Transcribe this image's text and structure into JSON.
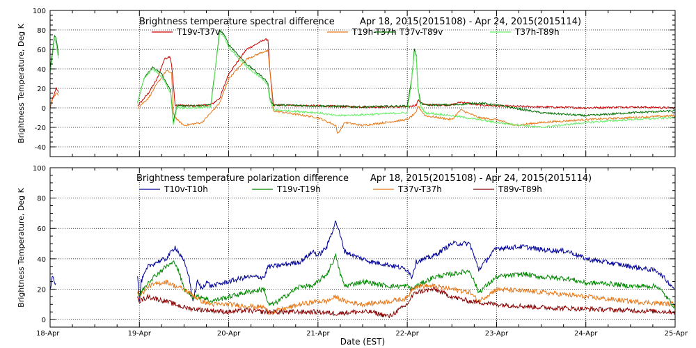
{
  "chart_data": [
    {
      "type": "line",
      "title": "Brightness temperature spectral difference",
      "date_range": "Apr 18, 2015(2015108) - Apr 24, 2015(2015114)",
      "ylabel": "Brightness Temperature, Deg K",
      "xlabel": "",
      "xlim": [
        0,
        7
      ],
      "ylim": [
        -50,
        100
      ],
      "y_ticks": [
        -40,
        -20,
        0,
        20,
        40,
        60,
        80,
        100
      ],
      "x_ticks": [
        0,
        1,
        2,
        3,
        4,
        5,
        6,
        7
      ],
      "grid": true,
      "series": [
        {
          "name": "T19v-T37v",
          "color": "#cc0000",
          "x": [
            0,
            0.03,
            0.07,
            0.1,
            0.98,
            1.1,
            1.2,
            1.28,
            1.34,
            1.36,
            1.4,
            1.6,
            1.8,
            1.9,
            2.0,
            2.2,
            2.4,
            2.44,
            2.46,
            2.5,
            3.0,
            3.5,
            4.0,
            4.1,
            4.12,
            4.2,
            4.5,
            4.6,
            4.8,
            5.0,
            5.5,
            6.0,
            6.5,
            7.0
          ],
          "y": [
            0,
            10,
            20,
            15,
            2,
            15,
            30,
            50,
            53,
            45,
            3,
            2,
            3,
            10,
            35,
            60,
            70,
            70,
            40,
            3,
            2,
            1,
            1,
            3,
            8,
            3,
            3,
            6,
            3,
            2,
            1,
            0,
            1,
            0
          ]
        },
        {
          "name": "T19h-T37h",
          "color": "#e87818",
          "x": [
            0,
            0.03,
            0.07,
            0.1,
            0.98,
            1.1,
            1.2,
            1.3,
            1.36,
            1.38,
            1.42,
            1.5,
            1.7,
            1.8,
            1.9,
            2.0,
            2.2,
            2.4,
            2.44,
            2.46,
            2.5,
            3.0,
            3.2,
            3.22,
            3.3,
            3.5,
            4.0,
            4.1,
            4.12,
            4.2,
            4.5,
            4.6,
            4.8,
            5.0,
            5.2,
            5.5,
            6.0,
            6.5,
            7.0
          ],
          "y": [
            0,
            10,
            15,
            12,
            0,
            10,
            25,
            38,
            36,
            -5,
            -12,
            -18,
            -15,
            -5,
            5,
            30,
            50,
            58,
            58,
            40,
            -3,
            -10,
            -18,
            -27,
            -15,
            -18,
            -12,
            -5,
            2,
            -8,
            -12,
            -2,
            -10,
            -12,
            -18,
            -15,
            -12,
            -10,
            -8
          ]
        },
        {
          "name": "T37v-T89v",
          "color": "#007000",
          "x": [
            0,
            0.03,
            0.05,
            0.07,
            0.1,
            0.98,
            1.05,
            1.15,
            1.25,
            1.35,
            1.38,
            1.42,
            1.6,
            1.8,
            1.85,
            1.9,
            1.95,
            2.0,
            2.2,
            2.4,
            2.44,
            2.46,
            2.5,
            3.0,
            3.5,
            4.0,
            4.05,
            4.08,
            4.1,
            4.12,
            4.15,
            4.2,
            4.5,
            4.8,
            5.0,
            5.5,
            6.0,
            6.5,
            7.0
          ],
          "y": [
            40,
            60,
            75,
            70,
            50,
            5,
            30,
            42,
            35,
            18,
            -15,
            2,
            2,
            3,
            40,
            80,
            75,
            65,
            45,
            30,
            25,
            10,
            3,
            2,
            1,
            2,
            30,
            60,
            55,
            20,
            5,
            3,
            3,
            5,
            3,
            -5,
            -8,
            -5,
            -3
          ]
        },
        {
          "name": "T37h-T89h",
          "color": "#66ee66",
          "x": [
            0,
            0.03,
            0.05,
            0.07,
            0.1,
            0.98,
            1.05,
            1.15,
            1.25,
            1.35,
            1.38,
            1.42,
            1.6,
            1.8,
            1.85,
            1.9,
            1.95,
            2.0,
            2.2,
            2.4,
            2.44,
            2.46,
            2.5,
            3.0,
            3.2,
            3.5,
            4.0,
            4.05,
            4.08,
            4.1,
            4.12,
            4.15,
            4.2,
            4.5,
            4.8,
            5.0,
            5.5,
            6.0,
            6.5,
            7.0
          ],
          "y": [
            35,
            55,
            72,
            65,
            45,
            5,
            30,
            40,
            32,
            15,
            -18,
            0,
            0,
            1,
            38,
            78,
            72,
            62,
            42,
            28,
            22,
            8,
            -2,
            -5,
            -8,
            -7,
            -5,
            28,
            58,
            52,
            18,
            2,
            -5,
            -8,
            -12,
            -15,
            -20,
            -15,
            -12,
            -10
          ]
        }
      ]
    },
    {
      "type": "line",
      "title": "Brightness temperature polarization difference",
      "date_range": "Apr 18, 2015(2015108) - Apr 24, 2015(2015114)",
      "ylabel": "Brightness Temperature, Deg K",
      "xlabel": "Date (EST)",
      "xlim": [
        0,
        7
      ],
      "ylim": [
        -5,
        100
      ],
      "y_ticks": [
        0,
        20,
        40,
        60,
        80,
        100
      ],
      "x_ticks": [
        0,
        1,
        2,
        3,
        4,
        5,
        6,
        7
      ],
      "x_tick_labels": [
        "18-Apr",
        "19-Apr",
        "20-Apr",
        "21-Apr",
        "22-Apr",
        "23-Apr",
        "24-Apr",
        "25-Apr"
      ],
      "grid": true,
      "series": [
        {
          "name": "T10v-T10h",
          "color": "#000099",
          "x": [
            0,
            0.03,
            0.05,
            0.07,
            0.98,
            1.0,
            1.02,
            1.1,
            1.2,
            1.3,
            1.4,
            1.5,
            1.55,
            1.6,
            1.65,
            1.7,
            1.75,
            1.8,
            2.0,
            2.2,
            2.4,
            2.44,
            2.5,
            2.8,
            2.95,
            3.0,
            3.1,
            3.2,
            3.25,
            3.3,
            3.4,
            3.6,
            3.8,
            4.0,
            4.05,
            4.1,
            4.3,
            4.5,
            4.7,
            4.8,
            5.0,
            5.3,
            5.5,
            5.8,
            6.0,
            6.2,
            6.5,
            6.8,
            7.0
          ],
          "y": [
            20,
            30,
            25,
            22,
            30,
            12,
            25,
            35,
            38,
            40,
            48,
            38,
            30,
            12,
            25,
            20,
            25,
            22,
            25,
            28,
            28,
            35,
            35,
            38,
            45,
            42,
            48,
            65,
            55,
            45,
            42,
            38,
            36,
            33,
            28,
            38,
            42,
            50,
            50,
            33,
            47,
            48,
            46,
            45,
            40,
            38,
            35,
            32,
            20
          ]
        },
        {
          "name": "T19v-T19h",
          "color": "#008800",
          "x": [
            0.98,
            1.0,
            1.02,
            1.1,
            1.2,
            1.3,
            1.4,
            1.45,
            1.5,
            1.6,
            1.7,
            1.8,
            2.0,
            2.2,
            2.4,
            2.44,
            2.5,
            2.8,
            2.95,
            3.0,
            3.1,
            3.2,
            3.25,
            3.3,
            3.5,
            3.8,
            4.0,
            4.05,
            4.1,
            4.3,
            4.5,
            4.7,
            4.8,
            5.0,
            5.3,
            5.5,
            5.8,
            6.0,
            6.2,
            6.5,
            6.8,
            7.0
          ],
          "y": [
            18,
            15,
            18,
            25,
            30,
            35,
            38,
            30,
            20,
            15,
            15,
            12,
            15,
            18,
            20,
            10,
            10,
            22,
            22,
            25,
            30,
            42,
            30,
            22,
            25,
            22,
            22,
            20,
            22,
            28,
            30,
            32,
            18,
            28,
            30,
            28,
            27,
            24,
            24,
            22,
            22,
            8
          ]
        },
        {
          "name": "T37v-T37h",
          "color": "#e87818",
          "x": [
            0.98,
            1.0,
            1.1,
            1.3,
            1.4,
            1.5,
            1.6,
            1.7,
            1.8,
            2.0,
            2.2,
            2.4,
            2.44,
            2.5,
            2.8,
            3.0,
            3.1,
            3.2,
            3.3,
            3.5,
            3.8,
            4.0,
            4.05,
            4.1,
            4.3,
            4.5,
            4.7,
            4.8,
            5.0,
            5.5,
            6.0,
            6.5,
            7.0
          ],
          "y": [
            18,
            15,
            22,
            25,
            22,
            20,
            16,
            12,
            10,
            10,
            9,
            8,
            5,
            5,
            10,
            12,
            12,
            15,
            12,
            10,
            12,
            14,
            20,
            22,
            22,
            20,
            18,
            12,
            20,
            18,
            15,
            12,
            10
          ]
        },
        {
          "name": "T89v-T89h",
          "color": "#880000",
          "x": [
            0.98,
            1.0,
            1.1,
            1.3,
            1.4,
            1.5,
            1.6,
            1.8,
            2.0,
            2.2,
            2.4,
            2.44,
            2.5,
            2.8,
            3.0,
            3.2,
            3.4,
            3.6,
            3.8,
            4.0,
            4.05,
            4.1,
            4.3,
            4.5,
            4.7,
            5.0,
            5.5,
            6.0,
            6.5,
            7.0
          ],
          "y": [
            16,
            12,
            15,
            12,
            10,
            8,
            7,
            6,
            5,
            6,
            5,
            5,
            5,
            5,
            5,
            4,
            5,
            5,
            2,
            10,
            15,
            18,
            20,
            15,
            12,
            10,
            8,
            7,
            6,
            5
          ]
        }
      ]
    }
  ]
}
